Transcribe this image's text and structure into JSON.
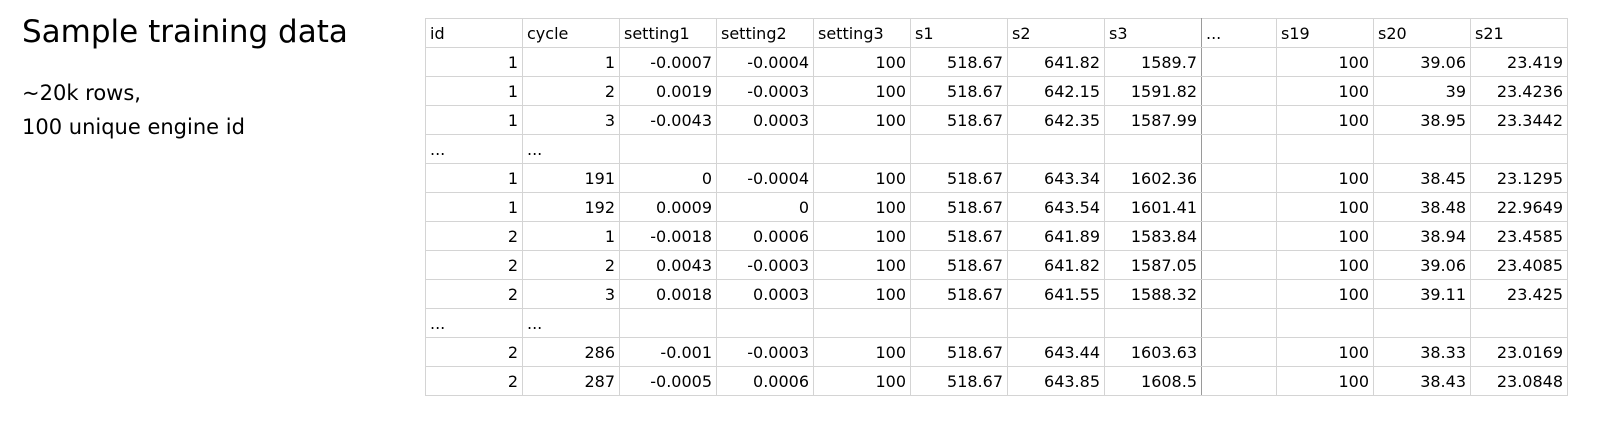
{
  "heading": {
    "title": "Sample training data",
    "line1": "~20k rows,",
    "line2": "100 unique engine id"
  },
  "table": {
    "columns": [
      "id",
      "cycle",
      "setting1",
      "setting2",
      "setting3",
      "s1",
      "s2",
      "s3",
      "...",
      "s19",
      "s20",
      "s21"
    ],
    "rows": [
      [
        "1",
        "1",
        "-0.0007",
        "-0.0004",
        "100",
        "518.67",
        "641.82",
        "1589.7",
        "",
        "100",
        "39.06",
        "23.419"
      ],
      [
        "1",
        "2",
        "0.0019",
        "-0.0003",
        "100",
        "518.67",
        "642.15",
        "1591.82",
        "",
        "100",
        "39",
        "23.4236"
      ],
      [
        "1",
        "3",
        "-0.0043",
        "0.0003",
        "100",
        "518.67",
        "642.35",
        "1587.99",
        "",
        "100",
        "38.95",
        "23.3442"
      ],
      [
        "...",
        "...",
        "",
        "",
        "",
        "",
        "",
        "",
        "",
        "",
        "",
        ""
      ],
      [
        "1",
        "191",
        "0",
        "-0.0004",
        "100",
        "518.67",
        "643.34",
        "1602.36",
        "",
        "100",
        "38.45",
        "23.1295"
      ],
      [
        "1",
        "192",
        "0.0009",
        "0",
        "100",
        "518.67",
        "643.54",
        "1601.41",
        "",
        "100",
        "38.48",
        "22.9649"
      ],
      [
        "2",
        "1",
        "-0.0018",
        "0.0006",
        "100",
        "518.67",
        "641.89",
        "1583.84",
        "",
        "100",
        "38.94",
        "23.4585"
      ],
      [
        "2",
        "2",
        "0.0043",
        "-0.0003",
        "100",
        "518.67",
        "641.82",
        "1587.05",
        "",
        "100",
        "39.06",
        "23.4085"
      ],
      [
        "2",
        "3",
        "0.0018",
        "0.0003",
        "100",
        "518.67",
        "641.55",
        "1588.32",
        "",
        "100",
        "39.11",
        "23.425"
      ],
      [
        "...",
        "...",
        "",
        "",
        "",
        "",
        "",
        "",
        "",
        "",
        "",
        ""
      ],
      [
        "2",
        "286",
        "-0.001",
        "-0.0003",
        "100",
        "518.67",
        "643.44",
        "1603.63",
        "",
        "100",
        "38.33",
        "23.0169"
      ],
      [
        "2",
        "287",
        "-0.0005",
        "0.0006",
        "100",
        "518.67",
        "643.85",
        "1608.5",
        "",
        "100",
        "38.43",
        "23.0848"
      ]
    ]
  }
}
